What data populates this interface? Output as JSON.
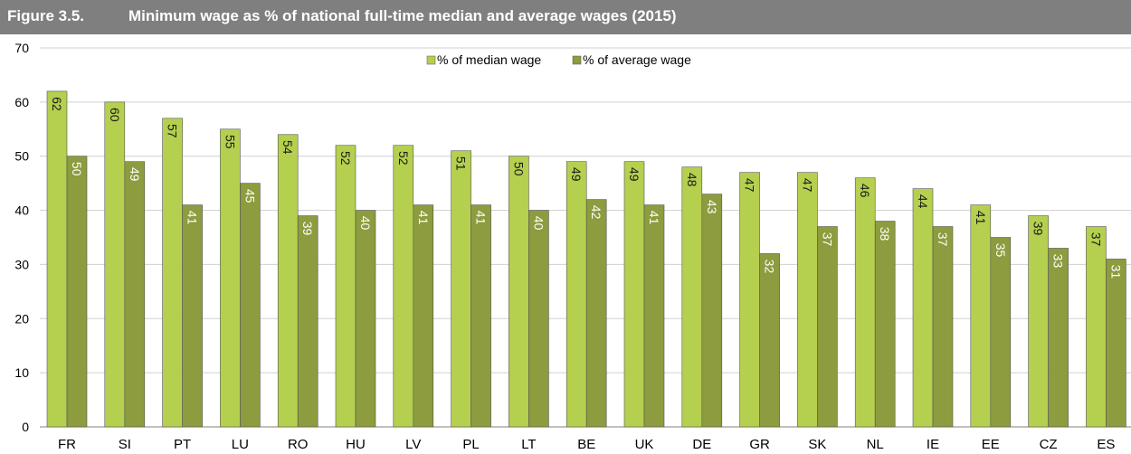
{
  "figure": {
    "number": "Figure 3.5.",
    "title": "Minimum wage as % of national full-time median and average wages (2015)"
  },
  "colors": {
    "median": "#b5cf4f",
    "average": "#8c9c3e",
    "title_bg": "#7f7f7f"
  },
  "chart_data": {
    "type": "bar",
    "title": "Minimum wage as % of national full-time median and average wages (2015)",
    "categories": [
      "FR",
      "SI",
      "PT",
      "LU",
      "RO",
      "HU",
      "LV",
      "PL",
      "LT",
      "BE",
      "UK",
      "DE",
      "GR",
      "SK",
      "NL",
      "IE",
      "EE",
      "CZ",
      "ES"
    ],
    "series": [
      {
        "name": "% of median wage",
        "values": [
          62,
          60,
          57,
          55,
          54,
          52,
          52,
          51,
          50,
          49,
          49,
          48,
          47,
          47,
          46,
          44,
          41,
          39,
          37
        ]
      },
      {
        "name": "% of average wage",
        "values": [
          50,
          49,
          41,
          45,
          39,
          40,
          41,
          41,
          40,
          42,
          41,
          43,
          32,
          37,
          38,
          37,
          35,
          33,
          31
        ]
      }
    ],
    "ylim": [
      0,
      70
    ],
    "yticks": [
      0,
      10,
      20,
      30,
      40,
      50,
      60,
      70
    ],
    "grid": true,
    "legend": "top-center",
    "data_labels": "rotated inside bars"
  }
}
